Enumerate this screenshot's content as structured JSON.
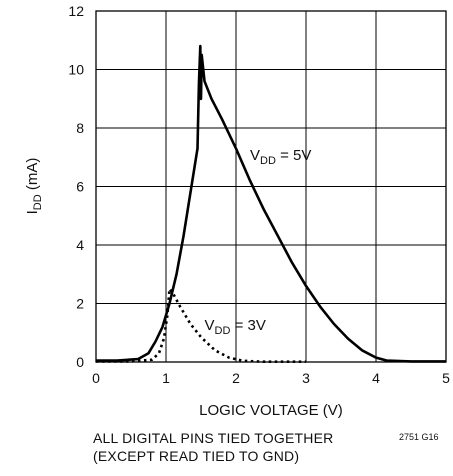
{
  "chart_data": {
    "type": "line",
    "title": "",
    "xlabel": "LOGIC VOLTAGE (V)",
    "ylabel": {
      "main": "I",
      "sub": "DD",
      "unit": " (mA)"
    },
    "xlim": [
      0,
      5
    ],
    "ylim": [
      0,
      12
    ],
    "xticks": [
      0,
      1,
      2,
      3,
      4,
      5
    ],
    "yticks": [
      0,
      2,
      4,
      6,
      8,
      10,
      12
    ],
    "grid": true,
    "series": [
      {
        "name": "VDD = 5V",
        "label": {
          "main": "V",
          "sub": "DD",
          "rest": " = 5V"
        },
        "style": "solid",
        "color": "#000000",
        "points": [
          [
            0,
            0.05
          ],
          [
            0.3,
            0.05
          ],
          [
            0.6,
            0.1
          ],
          [
            0.75,
            0.3
          ],
          [
            0.85,
            0.7
          ],
          [
            0.95,
            1.2
          ],
          [
            1.05,
            2.0
          ],
          [
            1.15,
            3.0
          ],
          [
            1.25,
            4.3
          ],
          [
            1.35,
            5.8
          ],
          [
            1.45,
            7.3
          ],
          [
            1.47,
            9.5
          ],
          [
            1.49,
            10.8
          ],
          [
            1.5,
            9.0
          ],
          [
            1.51,
            10.5
          ],
          [
            1.55,
            9.6
          ],
          [
            1.65,
            9.0
          ],
          [
            1.8,
            8.3
          ],
          [
            2.0,
            7.3
          ],
          [
            2.2,
            6.2
          ],
          [
            2.4,
            5.2
          ],
          [
            2.6,
            4.3
          ],
          [
            2.8,
            3.4
          ],
          [
            3.0,
            2.6
          ],
          [
            3.2,
            1.9
          ],
          [
            3.4,
            1.3
          ],
          [
            3.6,
            0.8
          ],
          [
            3.8,
            0.4
          ],
          [
            4.0,
            0.15
          ],
          [
            4.15,
            0.05
          ],
          [
            4.5,
            0.02
          ],
          [
            5.0,
            0.02
          ]
        ]
      },
      {
        "name": "VDD = 3V",
        "label": {
          "main": "V",
          "sub": "DD",
          "rest": " = 3V"
        },
        "style": "dotted",
        "color": "#000000",
        "points": [
          [
            0,
            0.02
          ],
          [
            0.5,
            0.02
          ],
          [
            0.8,
            0.08
          ],
          [
            0.9,
            0.3
          ],
          [
            0.97,
            0.8
          ],
          [
            1.02,
            1.6
          ],
          [
            1.05,
            2.5
          ],
          [
            1.1,
            2.35
          ],
          [
            1.2,
            1.9
          ],
          [
            1.35,
            1.3
          ],
          [
            1.5,
            0.85
          ],
          [
            1.7,
            0.4
          ],
          [
            1.9,
            0.15
          ],
          [
            2.1,
            0.04
          ],
          [
            2.4,
            0.01
          ],
          [
            3.0,
            0.01
          ]
        ]
      }
    ],
    "annotations": [
      {
        "series": 0,
        "x": 2.2,
        "y": 6.9
      },
      {
        "series": 1,
        "x": 1.55,
        "y": 1.1
      }
    ]
  },
  "footnote": {
    "line1": "ALL DIGITAL PINS TIED TOGETHER",
    "line2": "(EXCEPT READ TIED TO GND)",
    "code": "2751 G16"
  }
}
